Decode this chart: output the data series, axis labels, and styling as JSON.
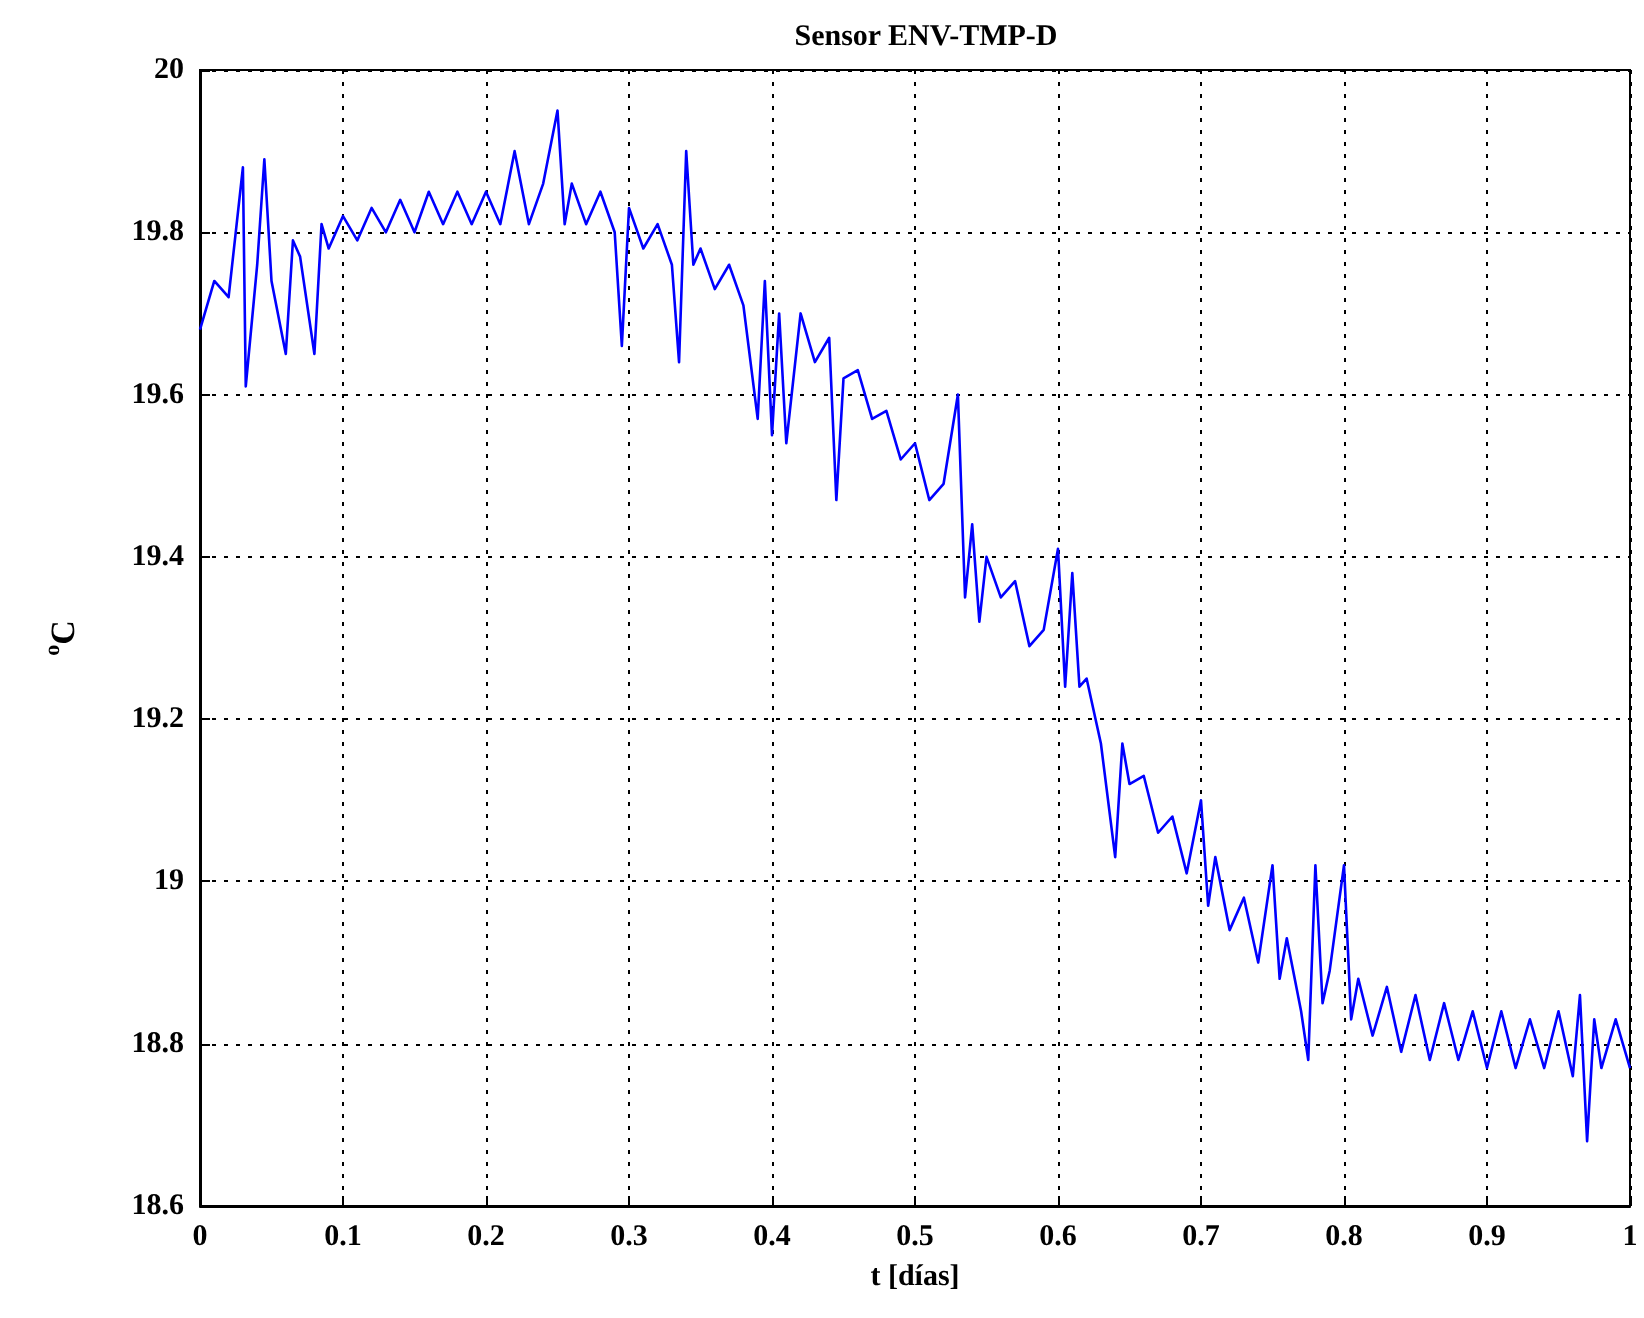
{
  "chart_data": {
    "type": "line",
    "title": "Sensor ENV-TMP-D",
    "xlabel": "t [días]",
    "ylabel": "$^{o}$C",
    "xlim": [
      0,
      1
    ],
    "xticks": [
      0,
      0.1,
      0.2,
      0.3,
      0.4,
      0.5,
      0.6,
      0.7,
      0.8,
      0.9,
      1
    ],
    "ylim": [
      18.6,
      20
    ],
    "yticks": [
      18.6,
      18.8,
      19,
      19.2,
      19.4,
      19.6,
      19.8,
      20
    ],
    "grid": true,
    "marker": "none",
    "line_style": "solid",
    "series": [
      {
        "color": "#0000ff",
        "x": [
          0,
          0.01,
          0.02,
          0.03,
          0.032,
          0.04,
          0.045,
          0.05,
          0.06,
          0.065,
          0.07,
          0.08,
          0.085,
          0.09,
          0.1,
          0.11,
          0.12,
          0.13,
          0.14,
          0.15,
          0.16,
          0.17,
          0.18,
          0.19,
          0.2,
          0.21,
          0.22,
          0.23,
          0.24,
          0.25,
          0.255,
          0.26,
          0.27,
          0.28,
          0.29,
          0.295,
          0.3,
          0.31,
          0.32,
          0.33,
          0.335,
          0.34,
          0.345,
          0.35,
          0.36,
          0.37,
          0.38,
          0.39,
          0.395,
          0.4,
          0.405,
          0.41,
          0.42,
          0.43,
          0.44,
          0.445,
          0.45,
          0.46,
          0.47,
          0.48,
          0.49,
          0.5,
          0.51,
          0.52,
          0.53,
          0.535,
          0.54,
          0.545,
          0.55,
          0.56,
          0.57,
          0.58,
          0.59,
          0.6,
          0.605,
          0.61,
          0.615,
          0.62,
          0.63,
          0.64,
          0.645,
          0.65,
          0.66,
          0.67,
          0.68,
          0.69,
          0.7,
          0.705,
          0.71,
          0.72,
          0.73,
          0.74,
          0.75,
          0.755,
          0.76,
          0.77,
          0.775,
          0.78,
          0.785,
          0.79,
          0.8,
          0.805,
          0.81,
          0.82,
          0.83,
          0.84,
          0.85,
          0.86,
          0.87,
          0.88,
          0.89,
          0.9,
          0.91,
          0.92,
          0.93,
          0.94,
          0.95,
          0.96,
          0.965,
          0.97,
          0.975,
          0.98,
          0.99,
          1
        ],
        "values": [
          19.68,
          19.74,
          19.72,
          19.88,
          19.61,
          19.76,
          19.89,
          19.74,
          19.65,
          19.79,
          19.77,
          19.65,
          19.81,
          19.78,
          19.82,
          19.79,
          19.83,
          19.8,
          19.84,
          19.8,
          19.85,
          19.81,
          19.85,
          19.81,
          19.85,
          19.81,
          19.9,
          19.81,
          19.86,
          19.95,
          19.81,
          19.86,
          19.81,
          19.85,
          19.8,
          19.66,
          19.83,
          19.78,
          19.81,
          19.76,
          19.64,
          19.9,
          19.76,
          19.78,
          19.73,
          19.76,
          19.71,
          19.57,
          19.74,
          19.55,
          19.7,
          19.54,
          19.7,
          19.64,
          19.67,
          19.47,
          19.62,
          19.63,
          19.57,
          19.58,
          19.52,
          19.54,
          19.47,
          19.49,
          19.6,
          19.35,
          19.44,
          19.32,
          19.4,
          19.35,
          19.37,
          19.29,
          19.31,
          19.41,
          19.24,
          19.38,
          19.24,
          19.25,
          19.17,
          19.03,
          19.17,
          19.12,
          19.13,
          19.06,
          19.08,
          19.01,
          19.1,
          18.97,
          19.03,
          18.94,
          18.98,
          18.9,
          19.02,
          18.88,
          18.93,
          18.84,
          18.78,
          19.02,
          18.85,
          18.89,
          19.02,
          18.83,
          18.88,
          18.81,
          18.87,
          18.79,
          18.86,
          18.78,
          18.85,
          18.78,
          18.84,
          18.77,
          18.84,
          18.77,
          18.83,
          18.77,
          18.84,
          18.76,
          18.86,
          18.68,
          18.83,
          18.77,
          18.83,
          18.77
        ]
      }
    ]
  }
}
